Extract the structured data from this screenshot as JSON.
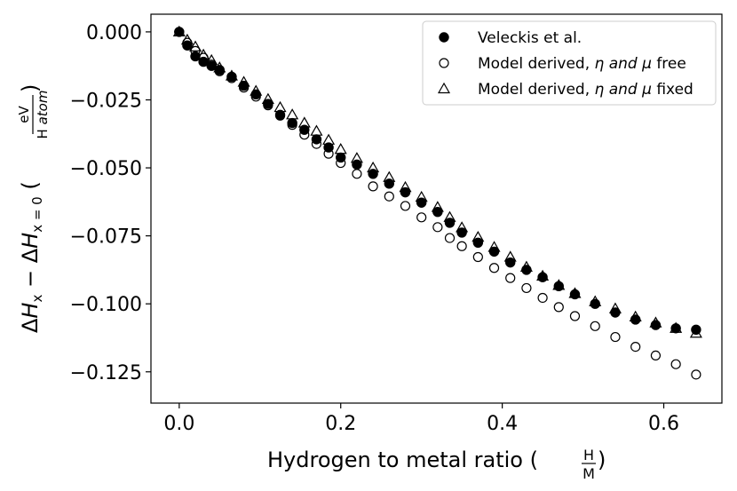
{
  "chart_data": {
    "type": "scatter",
    "title": "",
    "xlabel": {
      "main": "Hydrogen to metal ratio (",
      "frac_num": "H",
      "frac_den": "M",
      "close": ")"
    },
    "ylabel": {
      "delta1": "Δ",
      "H1": "H",
      "sub1": "x",
      "minus": " − ",
      "delta2": "Δ",
      "H2": "H",
      "sub2": "x = 0",
      "open": " (",
      "frac_num": "eV",
      "frac_den_H": "H ",
      "frac_den_atom": "atom",
      "close": ")"
    },
    "xlim": [
      -0.035,
      0.672
    ],
    "ylim": [
      -0.1365,
      0.0065
    ],
    "xticks": [
      0.0,
      0.2,
      0.4,
      0.6
    ],
    "xtick_labels": [
      "0.0",
      "0.2",
      "0.4",
      "0.6"
    ],
    "yticks": [
      0.0,
      -0.025,
      -0.05,
      -0.075,
      -0.1,
      -0.125
    ],
    "ytick_labels": [
      "0.000",
      "−0.025",
      "−0.050",
      "−0.075",
      "−0.100",
      "−0.125"
    ],
    "legend_position": "top-right",
    "series": [
      {
        "name": "Veleckis et al.",
        "marker": "filled-circle",
        "x": [
          0.0,
          0.01,
          0.02,
          0.03,
          0.04,
          0.05,
          0.065,
          0.08,
          0.095,
          0.11,
          0.125,
          0.14,
          0.155,
          0.17,
          0.185,
          0.2,
          0.22,
          0.24,
          0.26,
          0.28,
          0.3,
          0.32,
          0.335,
          0.35,
          0.37,
          0.39,
          0.41,
          0.43,
          0.45,
          0.47,
          0.49,
          0.515,
          0.54,
          0.565,
          0.59,
          0.615,
          0.64
        ],
        "y": [
          0.0,
          -0.005,
          -0.009,
          -0.011,
          -0.0125,
          -0.014,
          -0.0165,
          -0.0198,
          -0.023,
          -0.0265,
          -0.0305,
          -0.0335,
          -0.036,
          -0.0395,
          -0.0425,
          -0.0462,
          -0.0488,
          -0.0522,
          -0.0558,
          -0.059,
          -0.0628,
          -0.0662,
          -0.0702,
          -0.0738,
          -0.0775,
          -0.0808,
          -0.0848,
          -0.0875,
          -0.0902,
          -0.0935,
          -0.0965,
          -0.1,
          -0.1032,
          -0.1058,
          -0.1078,
          -0.109,
          -0.1095
        ]
      },
      {
        "name": "Model derived, η and μ free",
        "marker": "open-circle",
        "x": [
          0.0,
          0.01,
          0.02,
          0.03,
          0.04,
          0.05,
          0.065,
          0.08,
          0.095,
          0.11,
          0.125,
          0.14,
          0.155,
          0.17,
          0.185,
          0.2,
          0.22,
          0.24,
          0.26,
          0.28,
          0.3,
          0.32,
          0.335,
          0.35,
          0.37,
          0.39,
          0.41,
          0.43,
          0.45,
          0.47,
          0.49,
          0.515,
          0.54,
          0.565,
          0.59,
          0.615,
          0.64
        ],
        "y": [
          0.0,
          -0.004,
          -0.007,
          -0.0095,
          -0.012,
          -0.0145,
          -0.017,
          -0.0205,
          -0.0238,
          -0.027,
          -0.0308,
          -0.0342,
          -0.0378,
          -0.0412,
          -0.0448,
          -0.0482,
          -0.0522,
          -0.0568,
          -0.0605,
          -0.064,
          -0.0682,
          -0.0718,
          -0.0758,
          -0.0788,
          -0.0828,
          -0.0868,
          -0.0905,
          -0.0942,
          -0.0978,
          -0.1012,
          -0.1045,
          -0.1082,
          -0.1122,
          -0.1158,
          -0.119,
          -0.1222,
          -0.126
        ]
      },
      {
        "name": "Model derived, η and μ fixed",
        "marker": "open-triangle",
        "x": [
          0.0,
          0.01,
          0.02,
          0.03,
          0.04,
          0.05,
          0.065,
          0.08,
          0.095,
          0.11,
          0.125,
          0.14,
          0.155,
          0.17,
          0.185,
          0.2,
          0.22,
          0.24,
          0.26,
          0.28,
          0.3,
          0.32,
          0.335,
          0.35,
          0.37,
          0.39,
          0.41,
          0.43,
          0.45,
          0.47,
          0.49,
          0.515,
          0.54,
          0.565,
          0.59,
          0.615,
          0.64
        ],
        "y": [
          0.0,
          -0.003,
          -0.0055,
          -0.0085,
          -0.0105,
          -0.0132,
          -0.0162,
          -0.0185,
          -0.0218,
          -0.0248,
          -0.0278,
          -0.0305,
          -0.0335,
          -0.0365,
          -0.0398,
          -0.0432,
          -0.0465,
          -0.05,
          -0.0535,
          -0.0572,
          -0.0608,
          -0.0645,
          -0.0682,
          -0.072,
          -0.0755,
          -0.0792,
          -0.0828,
          -0.0865,
          -0.0898,
          -0.0932,
          -0.0962,
          -0.0992,
          -0.1018,
          -0.1048,
          -0.107,
          -0.109,
          -0.1108
        ]
      }
    ],
    "legend": {
      "entries": [
        {
          "text": "Veleckis et al.",
          "marker": "filled-circle"
        },
        {
          "prefix": "Model derived, ",
          "italic": "η and μ",
          "suffix": " free",
          "marker": "open-circle"
        },
        {
          "prefix": "Model derived, ",
          "italic": "η and μ",
          "suffix": " fixed",
          "marker": "open-triangle"
        }
      ]
    }
  }
}
